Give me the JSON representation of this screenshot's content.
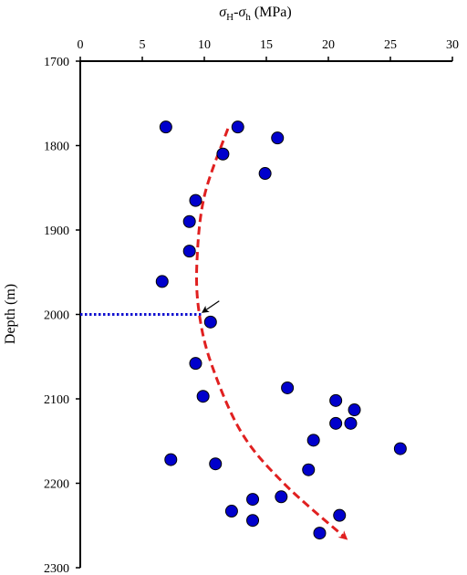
{
  "chart_data": {
    "type": "scatter",
    "title": "",
    "xlabel": {
      "sym1": "σ",
      "sub1": "H",
      "dash": "-",
      "sym2": "σ",
      "sub2": "h",
      "unit": " (MPa)"
    },
    "ylabel": "Depth (m)",
    "xlim": [
      0,
      30
    ],
    "ylim": [
      1700,
      2300
    ],
    "y_inverted": true,
    "x_axis_position": "top",
    "x_ticks": [
      0,
      5,
      10,
      15,
      20,
      25,
      30
    ],
    "y_ticks": [
      1700,
      1800,
      1900,
      2000,
      2100,
      2200,
      2300
    ],
    "x_tick_labels": [
      "0",
      "5",
      "10",
      "15",
      "20",
      "25",
      "30"
    ],
    "y_tick_labels": [
      "1700",
      "1800",
      "1900",
      "2000",
      "2100",
      "2200",
      "2300"
    ],
    "grid": false,
    "series": [
      {
        "marker": "circle",
        "color": "#0000CC",
        "edge_color": "#000000",
        "points": [
          {
            "x": 6.9,
            "y": 1778
          },
          {
            "x": 12.7,
            "y": 1778
          },
          {
            "x": 15.9,
            "y": 1791
          },
          {
            "x": 11.5,
            "y": 1810
          },
          {
            "x": 14.9,
            "y": 1833
          },
          {
            "x": 9.3,
            "y": 1865
          },
          {
            "x": 8.8,
            "y": 1890
          },
          {
            "x": 8.8,
            "y": 1925
          },
          {
            "x": 6.6,
            "y": 1961
          },
          {
            "x": 10.5,
            "y": 2009
          },
          {
            "x": 9.3,
            "y": 2058
          },
          {
            "x": 16.7,
            "y": 2087
          },
          {
            "x": 9.9,
            "y": 2097
          },
          {
            "x": 20.6,
            "y": 2102
          },
          {
            "x": 22.1,
            "y": 2113
          },
          {
            "x": 20.6,
            "y": 2129
          },
          {
            "x": 21.8,
            "y": 2129
          },
          {
            "x": 18.8,
            "y": 2149
          },
          {
            "x": 25.8,
            "y": 2159
          },
          {
            "x": 7.3,
            "y": 2172
          },
          {
            "x": 10.9,
            "y": 2177
          },
          {
            "x": 18.4,
            "y": 2184
          },
          {
            "x": 16.2,
            "y": 2216
          },
          {
            "x": 13.9,
            "y": 2219
          },
          {
            "x": 12.2,
            "y": 2233
          },
          {
            "x": 20.9,
            "y": 2238
          },
          {
            "x": 13.9,
            "y": 2244
          },
          {
            "x": 19.3,
            "y": 2259
          }
        ]
      }
    ],
    "trend_curve": {
      "style": "dashed",
      "color": "#E02020",
      "arrow_at_end": true,
      "points": [
        {
          "x": 11.9,
          "y": 1780
        },
        {
          "x": 10.0,
          "y": 1860
        },
        {
          "x": 9.4,
          "y": 1940
        },
        {
          "x": 9.6,
          "y": 2000
        },
        {
          "x": 10.6,
          "y": 2060
        },
        {
          "x": 13.0,
          "y": 2140
        },
        {
          "x": 16.4,
          "y": 2200
        },
        {
          "x": 21.4,
          "y": 2265
        }
      ]
    },
    "reference_line": {
      "style": "dotted",
      "color": "#1010D0",
      "y": 2000,
      "x_from": 0,
      "x_to": 9.8
    },
    "annotation_arrow": {
      "color": "#000000",
      "from": {
        "x": 11.2,
        "y": 1984
      },
      "to": {
        "x": 9.9,
        "y": 1997
      }
    }
  }
}
